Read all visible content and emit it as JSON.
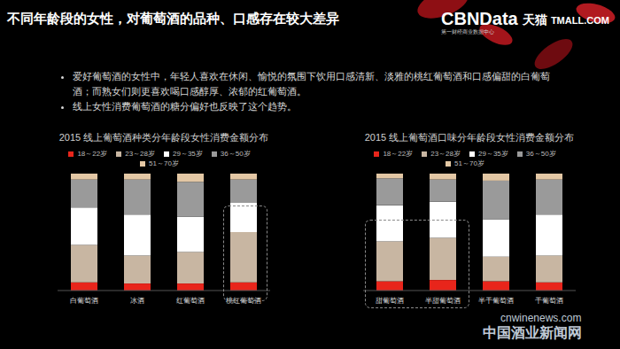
{
  "slide": {
    "title": "不同年龄段的女性，对葡萄酒的品种、口感存在较大差异",
    "logo": "CBNData",
    "logo_sub": "第一财经商业数据中心",
    "partner": "天猫",
    "partner_en": "TMALL.COM",
    "bullets": [
      "爱好葡萄酒的女性中，年轻人喜欢在休闲、愉悦的氛围下饮用口感清新、淡雅的桃红葡萄酒和口感偏甜的白葡萄酒；而熟女们则更喜欢喝口感醇厚、浓郁的红葡萄酒。",
      "线上女性消费葡萄酒的糖分偏好也反映了这个趋势。"
    ],
    "watermark": "cnwinenews.com",
    "watermark_cn": "中国酒业新闻网"
  },
  "chart_data": [
    {
      "type": "bar",
      "title": "2015 线上葡萄酒种类分年龄段女性消费金额分布",
      "categories": [
        "白葡萄酒",
        "冰酒",
        "红葡萄酒",
        "桃红葡萄酒"
      ],
      "stacked": true,
      "ylim": [
        0,
        100
      ],
      "tick_labels": "x",
      "legend": "top",
      "series": [
        {
          "name": "18～22岁",
          "color": "#e8251b",
          "values": [
            7,
            6,
            6,
            7
          ]
        },
        {
          "name": "23～28岁",
          "color": "#c8b6a2",
          "values": [
            32,
            24,
            27,
            43
          ]
        },
        {
          "name": "29～35岁",
          "color": "#ffffff",
          "values": [
            32,
            35,
            30,
            25
          ]
        },
        {
          "name": "36～50岁",
          "color": "#9a9a9a",
          "values": [
            24,
            30,
            30,
            20
          ]
        },
        {
          "name": "51～70岁",
          "color": "#e3c7a4",
          "values": [
            5,
            5,
            7,
            5
          ]
        }
      ]
    },
    {
      "type": "bar",
      "title": "2015 线上葡萄酒口味分年龄段女性消费金额分布",
      "categories": [
        "甜葡萄酒",
        "半甜葡萄酒",
        "半干葡萄酒",
        "干葡萄酒"
      ],
      "stacked": true,
      "ylim": [
        0,
        100
      ],
      "tick_labels": "x",
      "legend": "top",
      "series": [
        {
          "name": "18～22岁",
          "color": "#e8251b",
          "values": [
            8,
            9,
            8,
            7
          ]
        },
        {
          "name": "23～28岁",
          "color": "#c8b6a2",
          "values": [
            34,
            36,
            21,
            23
          ]
        },
        {
          "name": "29～35岁",
          "color": "#ffffff",
          "values": [
            31,
            31,
            32,
            35
          ]
        },
        {
          "name": "36～50岁",
          "color": "#9a9a9a",
          "values": [
            23,
            19,
            33,
            30
          ]
        },
        {
          "name": "51～70岁",
          "color": "#e3c7a4",
          "values": [
            4,
            5,
            6,
            5
          ]
        }
      ]
    }
  ]
}
